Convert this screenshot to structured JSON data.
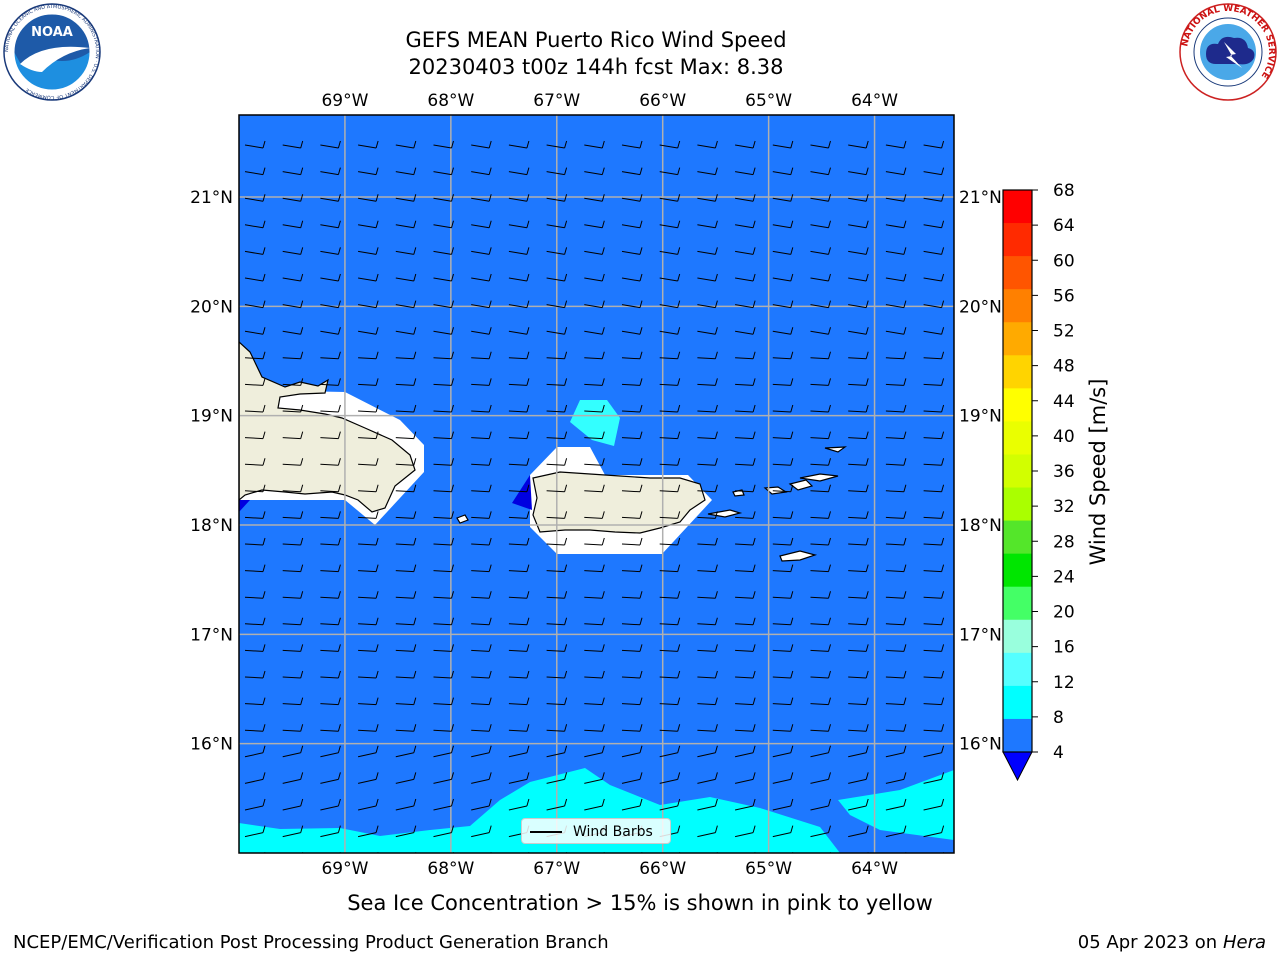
{
  "title": {
    "line1": "GEFS MEAN Puerto Rico Wind Speed",
    "line2": "20230403 t00z 144h fcst   Max: 8.38"
  },
  "logos": {
    "left_icon": "noaa-logo-icon",
    "left_text": "NOAA",
    "left_ring_text": "NATIONAL OCEANIC AND ATMOSPHERIC ADMINISTRATION · U.S. DEPARTMENT OF COMMERCE",
    "right_icon": "nws-logo-icon",
    "right_ring_text": "NATIONAL WEATHER SERVICE"
  },
  "map": {
    "lon_labels": [
      "69°W",
      "68°W",
      "67°W",
      "66°W",
      "65°W",
      "64°W"
    ],
    "lat_labels": [
      "21°N",
      "20°N",
      "19°N",
      "18°N",
      "17°N",
      "16°N"
    ],
    "extent": {
      "lon_min": -70.0,
      "lon_max": -63.25,
      "lat_min": 15.0,
      "lat_max": 21.75
    },
    "ocean_color": "#1e78ff",
    "land_color": "#efeedc",
    "cyan_color": "#00ffff",
    "light_cyan_color": "#33ffff",
    "dark_blue_color": "#0000e0",
    "barb_description": "wind barbs from the east"
  },
  "colorbar": {
    "label": "Wind Speed [m/s]",
    "ticks": [
      "68",
      "64",
      "60",
      "56",
      "52",
      "48",
      "44",
      "40",
      "36",
      "32",
      "28",
      "24",
      "20",
      "16",
      "12",
      "8",
      "4"
    ],
    "colors": [
      "#ff0000",
      "#ff2a00",
      "#ff5500",
      "#ff8000",
      "#ffaa00",
      "#ffd400",
      "#ffff00",
      "#eaff00",
      "#d2ff00",
      "#aaff00",
      "#54e62a",
      "#00e600",
      "#44ff66",
      "#99ffdd",
      "#55ffff",
      "#00ffff",
      "#1e78ff"
    ],
    "under_color": "#0000ff"
  },
  "legend": {
    "label": "Wind Barbs"
  },
  "footer": {
    "note": "Sea Ice Concentration > 15% is shown in pink to yellow",
    "branch": "NCEP/EMC/Verification Post Processing Product Generation Branch",
    "date": "05 Apr 2023 on ",
    "machine": "Hera"
  }
}
